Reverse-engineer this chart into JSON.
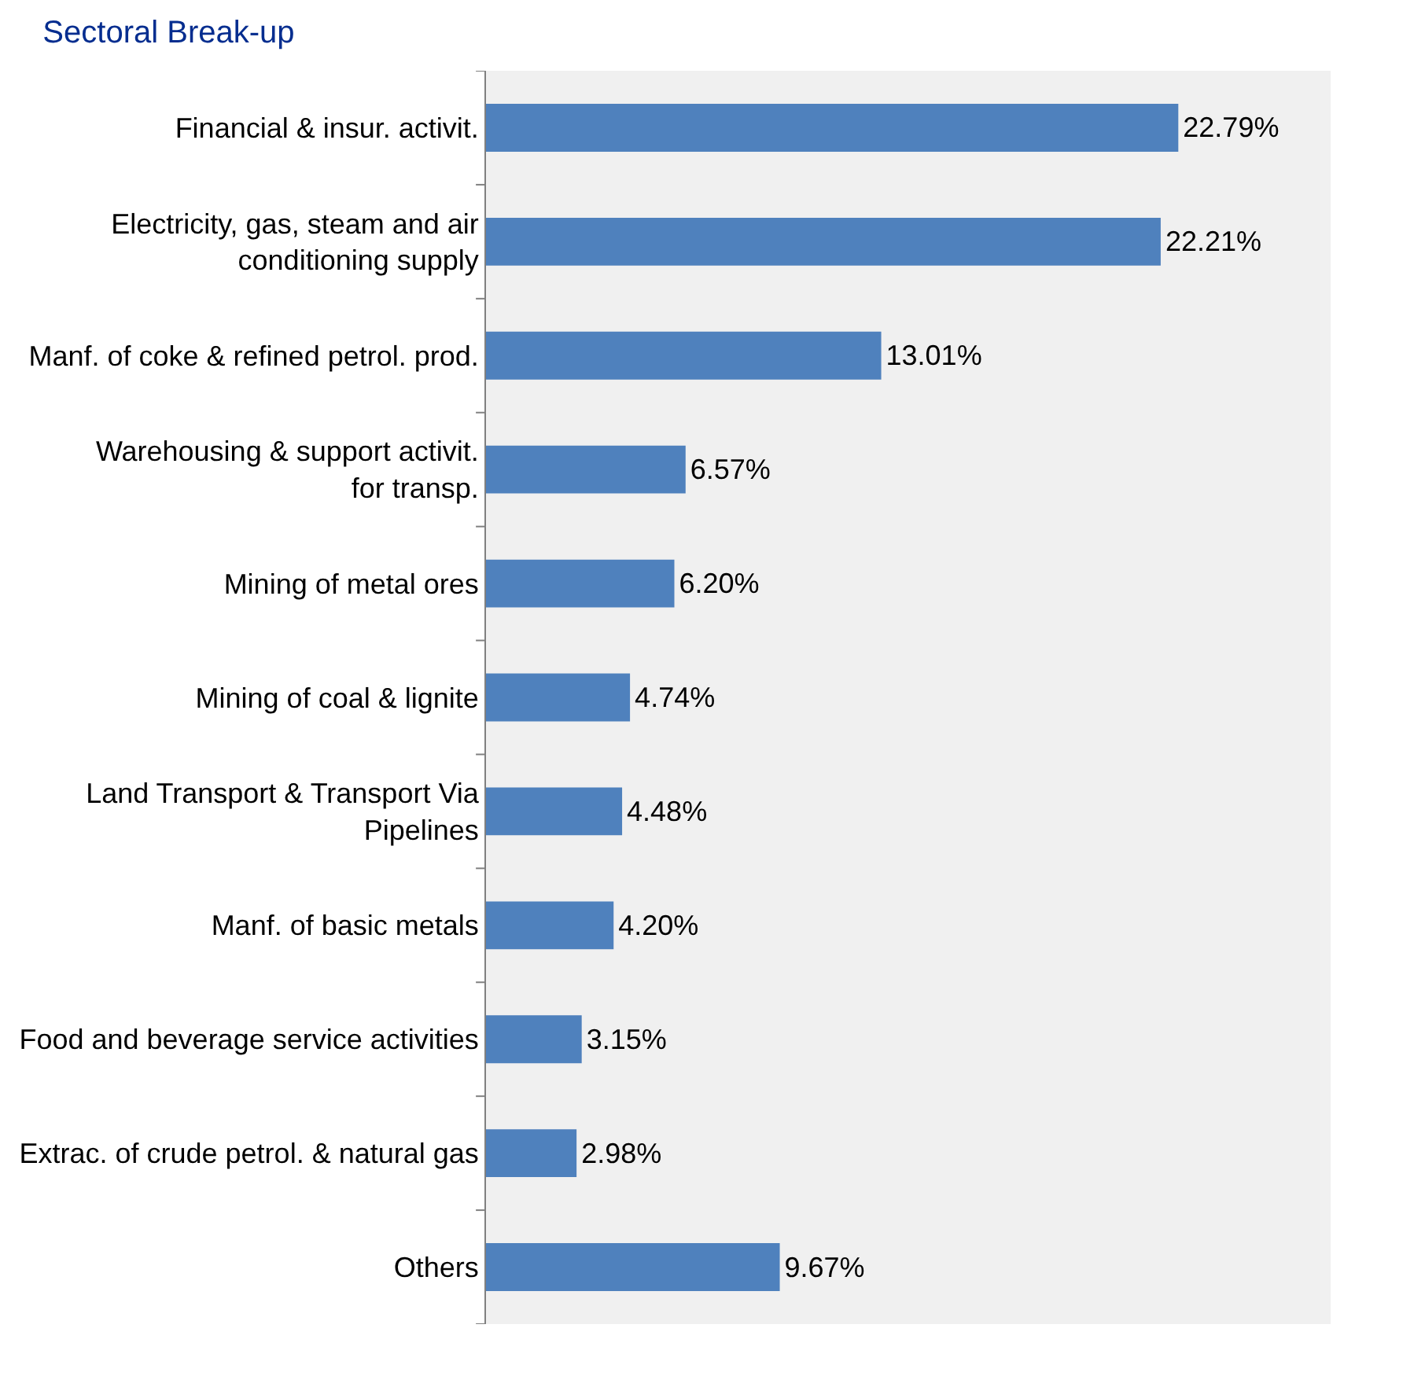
{
  "chart_data": {
    "type": "bar",
    "orientation": "horizontal",
    "title": "Sectoral Break-up",
    "categories": [
      "Financial & insur. activit.",
      "Electricity, gas, steam and air conditioning supply",
      "Manf. of coke & refined petrol. prod.",
      "Warehousing & support activit. for transp.",
      "Mining of metal ores",
      "Mining of coal & lignite",
      "Land Transport & Transport Via Pipelines",
      "Manf. of basic metals",
      "Food and beverage service activities",
      "Extrac. of crude petrol. & natural gas",
      "Others"
    ],
    "values": [
      22.79,
      22.21,
      13.01,
      6.57,
      6.2,
      4.74,
      4.48,
      4.2,
      3.15,
      2.98,
      9.67
    ],
    "value_labels": [
      "22.79%",
      "22.21%",
      "13.01%",
      "6.57%",
      "6.20%",
      "4.74%",
      "4.48%",
      "4.20%",
      "3.15%",
      "2.98%",
      "9.67%"
    ],
    "color": "#4f81bd",
    "grid": false,
    "tick_labels": "y"
  }
}
